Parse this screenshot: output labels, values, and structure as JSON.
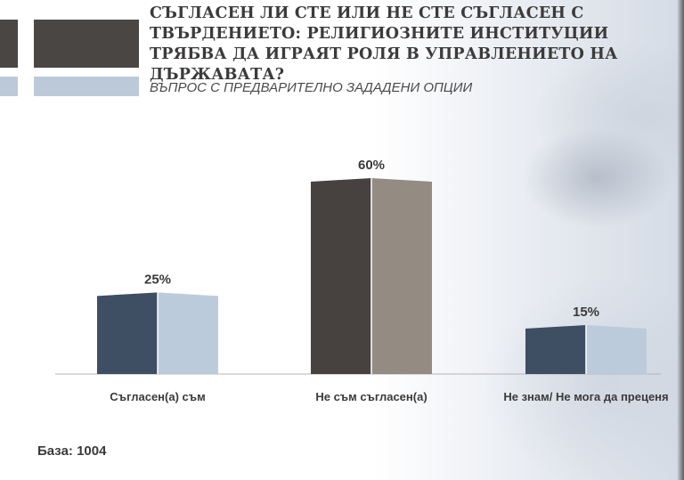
{
  "header": {
    "title": "СЪГЛАСЕН ЛИ СТЕ ИЛИ НЕ СТЕ СЪГЛАСЕН С ТВЪРДЕНИЕТО: РЕЛИГИОЗНИТЕ ИНСТИТУЦИИ ТРЯБВА ДА ИГРАЯТ РОЛЯ В УПРАВЛЕНИЕТО НА ДЪРЖАВАТА?",
    "subtitle": "ВЪПРОС С ПРЕДВАРИТЕЛНО ЗАДАДЕНИ ОПЦИИ"
  },
  "footer": {
    "base_note": "База: 1004"
  },
  "colors": {
    "bar_dark_left": "#3e4e63",
    "bar_light_right": "#bccbdb",
    "bar_highlight_left": "#474240",
    "bar_highlight_right": "#948b83",
    "baseline": "#b5b5b5",
    "text": "#3a3a3a"
  },
  "chart_data": {
    "type": "bar",
    "categories": [
      "Съгласен(а) съм",
      "Не съм съгласен(а)",
      "Не знам/ Не мога да преценя"
    ],
    "values": [
      25,
      60,
      15
    ],
    "value_labels": [
      "25%",
      "60%",
      "15%"
    ],
    "highlight_index": 1,
    "unit": "%",
    "ylim": [
      0,
      100
    ],
    "grid": false,
    "legend": "none"
  }
}
